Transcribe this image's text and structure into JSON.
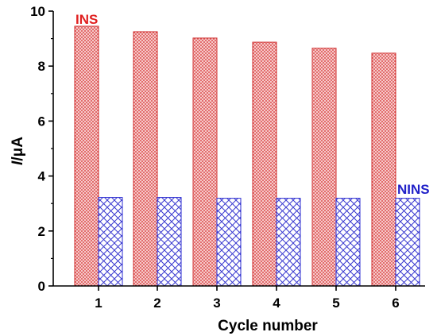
{
  "chart_data": {
    "type": "bar",
    "xlabel": "Cycle number",
    "ylabel_italic": "I",
    "ylabel_unit": "/μA",
    "ylim": [
      0,
      10
    ],
    "yticks": [
      "0",
      "2",
      "4",
      "6",
      "8",
      "10"
    ],
    "categories": [
      "1",
      "2",
      "3",
      "4",
      "5",
      "6"
    ],
    "series": [
      {
        "name": "INS",
        "color": "#e02020",
        "values": [
          9.45,
          9.25,
          9.02,
          8.87,
          8.65,
          8.47
        ]
      },
      {
        "name": "NINS",
        "color": "#2020c8",
        "values": [
          3.22,
          3.22,
          3.19,
          3.19,
          3.19,
          3.19
        ]
      }
    ],
    "grid": false
  }
}
